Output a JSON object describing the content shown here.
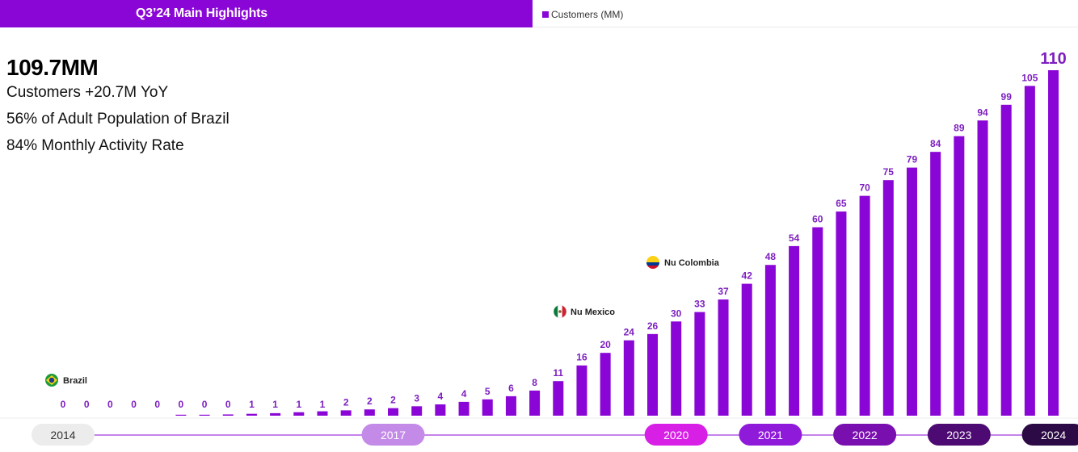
{
  "header": {
    "title": "Q3’24 Main Highlights",
    "legend_label": "Customers (MM)"
  },
  "kpis": {
    "headline": "109.7MM",
    "lines": [
      "Customers +20.7M YoY",
      "56% of Adult Population of Brazil",
      "84% Monthly Activity Rate"
    ]
  },
  "colors": {
    "bar": "#8a06d6",
    "header": "#8a06d6",
    "value_label": "#7d1fbf"
  },
  "chart_data": {
    "type": "bar",
    "series": [
      {
        "name": "Customers (MM)",
        "values": [
          0.0,
          0.0,
          0.0,
          0.0,
          0.0,
          0.2,
          0.3,
          0.4,
          0.6,
          0.8,
          1.1,
          1.4,
          1.7,
          2.0,
          2.4,
          3.0,
          3.6,
          4.4,
          5.2,
          6.2,
          8.0,
          11.0,
          16.0,
          20.0,
          24.0,
          26.0,
          30.0,
          33.0,
          37.0,
          42.0,
          48.0,
          54.0,
          60.0,
          65.0,
          70.0,
          75.0,
          79.0,
          84.0,
          89.0,
          94.0,
          99.0,
          105.0,
          110.0
        ]
      }
    ],
    "value_labels": [
      "0",
      "0",
      "0",
      "0",
      "0",
      "0",
      "0",
      "0",
      "1",
      "1",
      "1",
      "1",
      "2",
      "2",
      "2",
      "3",
      "4",
      "4",
      "5",
      "6",
      "8",
      "11",
      "16",
      "20",
      "24",
      "26",
      "30",
      "33",
      "37",
      "42",
      "48",
      "54",
      "60",
      "65",
      "70",
      "75",
      "79",
      "84",
      "89",
      "94",
      "99",
      "105",
      "110"
    ],
    "ylim": [
      0,
      110
    ],
    "grid": false,
    "legend": "top-center",
    "year_labels": [
      {
        "label": "2014",
        "bar_index": 0,
        "color": "#ececec",
        "text_color": "#333333"
      },
      {
        "label": "2017",
        "bar_index": 14,
        "color": "#c48ae8",
        "text_color": "#ffffff"
      },
      {
        "label": "2020",
        "bar_index": 26,
        "color": "#d71fe6",
        "text_color": "#ffffff"
      },
      {
        "label": "2021",
        "bar_index": 30,
        "color": "#8f1ad9",
        "text_color": "#ffffff"
      },
      {
        "label": "2022",
        "bar_index": 34,
        "color": "#7a0fb0",
        "text_color": "#ffffff"
      },
      {
        "label": "2023",
        "bar_index": 38,
        "color": "#4d0a72",
        "text_color": "#ffffff"
      },
      {
        "label": "2024",
        "bar_index": 42,
        "color": "#2c0a45",
        "text_color": "#ffffff"
      }
    ],
    "annotations": [
      {
        "text": "Brazil",
        "bar_index": 0,
        "flag": "brazil-flag-icon"
      },
      {
        "text": "Nu Mexico",
        "bar_index": 21,
        "flag": "mexico-flag-icon"
      },
      {
        "text": "Nu Colombia",
        "bar_index": 25,
        "flag": "colombia-flag-icon"
      }
    ]
  }
}
